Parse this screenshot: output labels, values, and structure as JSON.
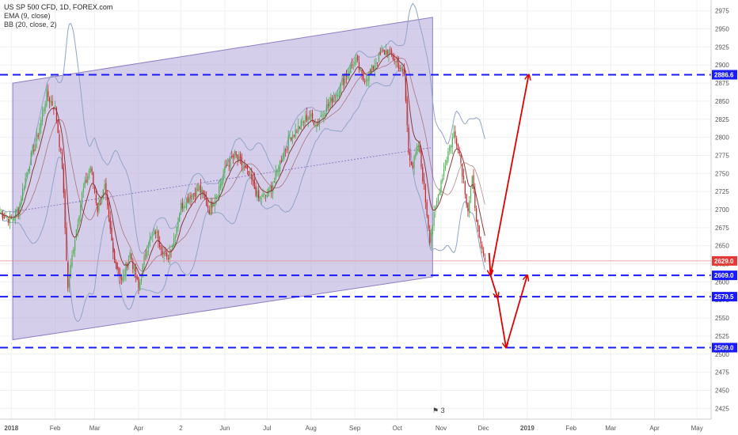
{
  "legend": {
    "title": "US SP 500 CFD, 1D, FOREX.com",
    "ema": "EMA (9, close)",
    "bb": "BB (20, close, 2)"
  },
  "badge_text": "3",
  "colors": {
    "up": "#4caf50",
    "down": "#c62828",
    "channel_fill": "#b3a6d8",
    "channel_line": "#8e7cc3",
    "bb": "#90a4c8",
    "ema": "#8b3a3a",
    "level": "#1a1aff",
    "arrow": "#e00000",
    "price_line": "#e88a8a"
  },
  "chart_data": {
    "type": "candlestick",
    "title": "US SP 500 CFD, 1D, FOREX.com",
    "ylim": [
      2410,
      2990
    ],
    "y_ticks": [
      2425,
      2450,
      2475,
      2500,
      2525,
      2550,
      2575,
      2600,
      2625,
      2650,
      2675,
      2700,
      2725,
      2750,
      2775,
      2800,
      2825,
      2850,
      2875,
      2900,
      2925,
      2950,
      2975
    ],
    "x_ticks": [
      "2018",
      "Feb",
      "Mar",
      "Apr",
      "2",
      "Jun",
      "Jul",
      "Aug",
      "Sep",
      "Oct",
      "Nov",
      "Dec",
      "2019",
      "Feb",
      "Mar",
      "Apr",
      "May"
    ],
    "x_tick_days": [
      0,
      31,
      59,
      90,
      120,
      151,
      181,
      212,
      243,
      273,
      304,
      334,
      365,
      396,
      424,
      455,
      485
    ],
    "x_day_range": [
      -8,
      495
    ],
    "horizontal_levels": [
      2886.6,
      2609.0,
      2579.5,
      2509.0
    ],
    "current_price": 2629.0,
    "price_tags": [
      "2886.6",
      "2629.0",
      "2609.0",
      "2579.5",
      "2509.0"
    ],
    "channel": {
      "start_day": 1,
      "end_day": 298,
      "upper": [
        2875,
        2966
      ],
      "lower": [
        2520,
        2607
      ],
      "mid": [
        2697,
        2786
      ]
    },
    "key_closes": [
      {
        "day": -8,
        "close": 2695
      },
      {
        "day": 0,
        "close": 2686
      },
      {
        "day": 5,
        "close": 2700
      },
      {
        "day": 12,
        "close": 2760
      },
      {
        "day": 19,
        "close": 2805
      },
      {
        "day": 25,
        "close": 2860
      },
      {
        "day": 31,
        "close": 2840
      },
      {
        "day": 36,
        "close": 2760
      },
      {
        "day": 40,
        "close": 2590
      },
      {
        "day": 44,
        "close": 2650
      },
      {
        "day": 50,
        "close": 2720
      },
      {
        "day": 56,
        "close": 2760
      },
      {
        "day": 61,
        "close": 2700
      },
      {
        "day": 66,
        "close": 2730
      },
      {
        "day": 72,
        "close": 2640
      },
      {
        "day": 78,
        "close": 2600
      },
      {
        "day": 84,
        "close": 2640
      },
      {
        "day": 90,
        "close": 2590
      },
      {
        "day": 96,
        "close": 2650
      },
      {
        "day": 102,
        "close": 2670
      },
      {
        "day": 110,
        "close": 2630
      },
      {
        "day": 115,
        "close": 2660
      },
      {
        "day": 120,
        "close": 2705
      },
      {
        "day": 127,
        "close": 2720
      },
      {
        "day": 133,
        "close": 2730
      },
      {
        "day": 140,
        "close": 2700
      },
      {
        "day": 146,
        "close": 2725
      },
      {
        "day": 152,
        "close": 2760
      },
      {
        "day": 158,
        "close": 2775
      },
      {
        "day": 164,
        "close": 2760
      },
      {
        "day": 170,
        "close": 2740
      },
      {
        "day": 175,
        "close": 2715
      },
      {
        "day": 181,
        "close": 2720
      },
      {
        "day": 186,
        "close": 2740
      },
      {
        "day": 191,
        "close": 2770
      },
      {
        "day": 197,
        "close": 2800
      },
      {
        "day": 204,
        "close": 2815
      },
      {
        "day": 210,
        "close": 2830
      },
      {
        "day": 216,
        "close": 2820
      },
      {
        "day": 222,
        "close": 2840
      },
      {
        "day": 228,
        "close": 2855
      },
      {
        "day": 234,
        "close": 2875
      },
      {
        "day": 239,
        "close": 2895
      },
      {
        "day": 244,
        "close": 2905
      },
      {
        "day": 249,
        "close": 2880
      },
      {
        "day": 254,
        "close": 2890
      },
      {
        "day": 258,
        "close": 2905
      },
      {
        "day": 262,
        "close": 2915
      },
      {
        "day": 266,
        "close": 2920
      },
      {
        "day": 270,
        "close": 2910
      },
      {
        "day": 274,
        "close": 2900
      },
      {
        "day": 278,
        "close": 2885
      },
      {
        "day": 281,
        "close": 2780
      },
      {
        "day": 284,
        "close": 2760
      },
      {
        "day": 288,
        "close": 2790
      },
      {
        "day": 292,
        "close": 2730
      },
      {
        "day": 296,
        "close": 2660
      },
      {
        "day": 300,
        "close": 2700
      },
      {
        "day": 304,
        "close": 2740
      },
      {
        "day": 309,
        "close": 2780
      },
      {
        "day": 313,
        "close": 2805
      },
      {
        "day": 316,
        "close": 2790
      },
      {
        "day": 320,
        "close": 2740
      },
      {
        "day": 323,
        "close": 2700
      },
      {
        "day": 326,
        "close": 2740
      },
      {
        "day": 329,
        "close": 2690
      },
      {
        "day": 331,
        "close": 2655
      },
      {
        "day": 333,
        "close": 2641
      },
      {
        "day": 335,
        "close": 2629
      }
    ],
    "annotation_path": [
      {
        "day": 345,
        "price": 2609.0
      },
      {
        "day": 360,
        "price": 2509.0
      },
      {
        "day": 374,
        "price": 2609.0
      }
    ],
    "annotation_arrows": [
      {
        "from_day": 338,
        "from_price": 2640,
        "to_day": 339,
        "to_price": 2609
      },
      {
        "from_day": 339,
        "from_price": 2609,
        "to_day": 344,
        "to_price": 2578
      },
      {
        "from_day": 344,
        "from_price": 2578,
        "to_day": 350,
        "to_price": 2509
      },
      {
        "from_day": 350,
        "from_price": 2509,
        "to_day": 365,
        "to_price": 2609
      },
      {
        "from_day": 339,
        "from_price": 2609,
        "to_day": 366,
        "to_price": 2886.6
      }
    ]
  }
}
